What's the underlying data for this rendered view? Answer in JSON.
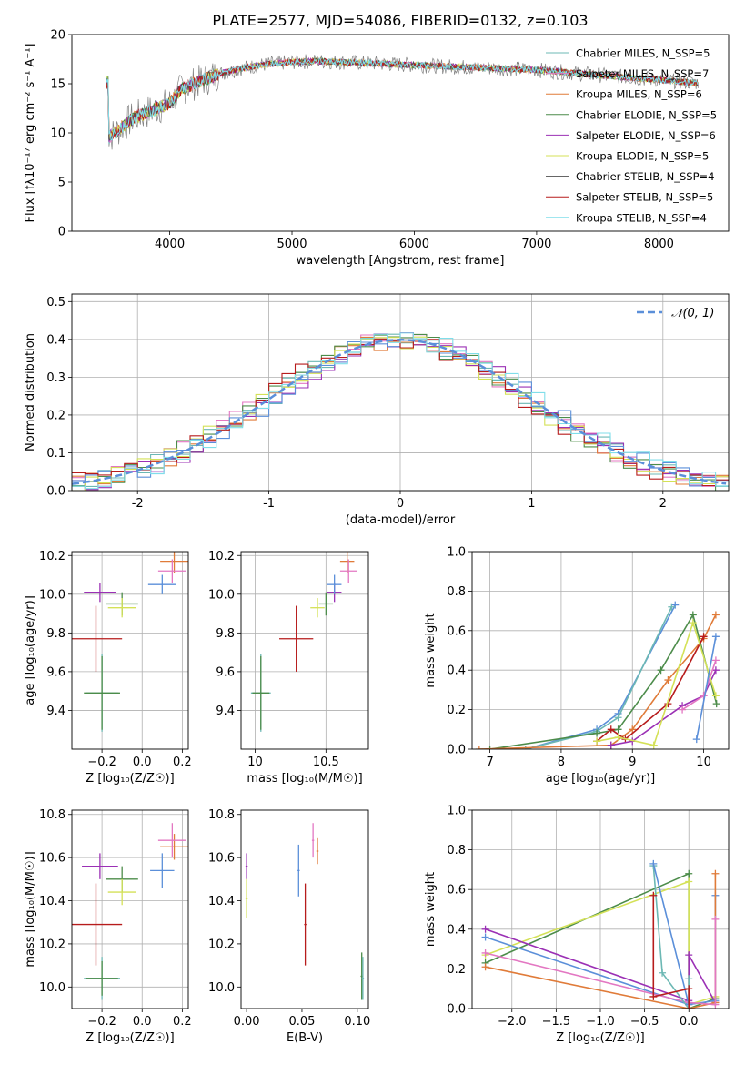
{
  "figure": {
    "title": "PLATE=2577, MJD=54086, FIBERID=0132, z=0.103"
  },
  "chart_data": [
    {
      "id": "spectrum",
      "type": "line",
      "title": "PLATE=2577, MJD=54086, FIBERID=0132, z=0.103",
      "xlabel": "wavelength [Angstrom, rest frame]",
      "ylabel": "Flux [fλ10⁻¹⁷ erg cm⁻² s⁻¹ A⁻¹]",
      "xlim": [
        3200,
        8570
      ],
      "ylim": [
        0,
        20
      ],
      "xticks": [
        4000,
        5000,
        6000,
        7000,
        8000
      ],
      "yticks": [
        0,
        5,
        10,
        15,
        20
      ],
      "grid": false,
      "legend_position": "top-right",
      "data_trace": {
        "name": "",
        "color": "#808080",
        "x": [
          3500,
          3600,
          3700,
          3800,
          3900,
          4000,
          4100,
          4200,
          4300,
          4400,
          4500,
          4600,
          4700,
          4800,
          4900,
          5000,
          5200,
          5400,
          5600,
          5800,
          6000,
          6200,
          6400,
          6600,
          6800,
          7000,
          7200,
          7400,
          7600,
          7800,
          8000,
          8200,
          8300
        ],
        "y": [
          9.5,
          10.5,
          11.5,
          12.0,
          12.5,
          13.0,
          14.5,
          15.0,
          15.5,
          16.0,
          16.3,
          16.6,
          16.8,
          17.0,
          17.1,
          17.2,
          17.3,
          17.2,
          17.1,
          17.0,
          16.9,
          16.8,
          16.7,
          16.6,
          16.5,
          16.4,
          16.2,
          16.0,
          15.8,
          15.6,
          15.4,
          15.2,
          15.1
        ]
      },
      "series": [
        {
          "name": "Chabrier MILES, N_SSP=5",
          "color": "#6cb8b4"
        },
        {
          "name": "Salpeter MILES, N_SSP=7",
          "color": "#e377c2"
        },
        {
          "name": "Kroupa MILES, N_SSP=6",
          "color": "#e07b39"
        },
        {
          "name": "Chabrier ELODIE, N_SSP=5",
          "color": "#4c8c4a"
        },
        {
          "name": "Salpeter ELODIE, N_SSP=6",
          "color": "#9b30b5"
        },
        {
          "name": "Kroupa ELODIE, N_SSP=5",
          "color": "#d4e157"
        },
        {
          "name": "Chabrier STELIB, N_SSP=4",
          "color": "#505050"
        },
        {
          "name": "Salpeter STELIB, N_SSP=5",
          "color": "#b71c1c"
        },
        {
          "name": "Kroupa STELIB, N_SSP=4",
          "color": "#80deea"
        }
      ]
    },
    {
      "id": "residuals",
      "type": "histogram",
      "xlabel": "(data-model)/error",
      "ylabel": "Normed distribution",
      "xlim": [
        -2.5,
        2.5
      ],
      "ylim": [
        0,
        0.52
      ],
      "xticks": [
        -2,
        -1,
        0,
        1,
        2
      ],
      "yticks": [
        0.0,
        0.1,
        0.2,
        0.3,
        0.4,
        0.5
      ],
      "grid": true,
      "legend_position": "top-right",
      "legend": [
        "𝒩(0, 1)"
      ],
      "gaussian": {
        "mean": 0,
        "sigma": 1,
        "color": "#5b8fd9"
      },
      "bin_width": 0.1,
      "histograms": [
        {
          "color": "#6cb8b4",
          "offset": 0.0
        },
        {
          "color": "#e377c2",
          "offset": 0.02
        },
        {
          "color": "#e07b39",
          "offset": -0.02
        },
        {
          "color": "#4c8c4a",
          "offset": 0.03
        },
        {
          "color": "#9b30b5",
          "offset": -0.03
        },
        {
          "color": "#d4e157",
          "offset": 0.04
        },
        {
          "color": "#5b8fd9",
          "offset": -0.04
        },
        {
          "color": "#b71c1c",
          "offset": 0.05
        },
        {
          "color": "#80deea",
          "offset": -0.05
        }
      ]
    },
    {
      "id": "age_vs_Z",
      "type": "errorbar",
      "xlabel": "Z [log₁₀(Z/Z☉)]",
      "ylabel": "age  [log₁₀(age/yr)]",
      "xlim": [
        -0.35,
        0.23
      ],
      "ylim": [
        9.2,
        10.22
      ],
      "xticks": [
        -0.2,
        0.0,
        0.2
      ],
      "xtick_labels": [
        "−0.2",
        "0.0",
        "0.2"
      ],
      "yticks": [
        9.4,
        9.6,
        9.8,
        10.0,
        10.2
      ],
      "grid": true,
      "points": [
        {
          "x": -0.2,
          "y": 9.49,
          "xerr": 0.08,
          "yerr": 0.2,
          "color": "#6cb8b4"
        },
        {
          "x": -0.2,
          "y": 9.49,
          "xerr": 0.09,
          "yerr": 0.19,
          "color": "#4c8c4a"
        },
        {
          "x": -0.23,
          "y": 9.77,
          "xerr": 0.13,
          "yerr": 0.17,
          "color": "#b71c1c"
        },
        {
          "x": -0.21,
          "y": 10.01,
          "xerr": 0.08,
          "yerr": 0.05,
          "color": "#9b30b5"
        },
        {
          "x": -0.1,
          "y": 9.95,
          "xerr": 0.08,
          "yerr": 0.06,
          "color": "#4c8c4a"
        },
        {
          "x": -0.1,
          "y": 9.93,
          "xerr": 0.07,
          "yerr": 0.05,
          "color": "#d4e157"
        },
        {
          "x": 0.1,
          "y": 10.05,
          "xerr": 0.07,
          "yerr": 0.05,
          "color": "#5b8fd9"
        },
        {
          "x": 0.16,
          "y": 10.17,
          "xerr": 0.07,
          "yerr": 0.06,
          "color": "#e07b39"
        },
        {
          "x": 0.15,
          "y": 10.12,
          "xerr": 0.07,
          "yerr": 0.06,
          "color": "#e377c2"
        }
      ]
    },
    {
      "id": "age_vs_mass",
      "type": "errorbar",
      "xlabel": "mass [log₁₀(M/M☉)]",
      "ylabel": "",
      "xlim": [
        9.9,
        10.8
      ],
      "ylim": [
        9.2,
        10.22
      ],
      "xticks": [
        10.0,
        10.5
      ],
      "yticks": [
        9.4,
        9.6,
        9.8,
        10.0,
        10.2
      ],
      "grid": true,
      "points": [
        {
          "x": 10.04,
          "y": 9.49,
          "xerr": 0.07,
          "yerr": 0.2,
          "color": "#6cb8b4"
        },
        {
          "x": 10.04,
          "y": 9.49,
          "xerr": 0.06,
          "yerr": 0.19,
          "color": "#4c8c4a"
        },
        {
          "x": 10.29,
          "y": 9.77,
          "xerr": 0.12,
          "yerr": 0.17,
          "color": "#b71c1c"
        },
        {
          "x": 10.5,
          "y": 9.95,
          "xerr": 0.05,
          "yerr": 0.06,
          "color": "#4c8c4a"
        },
        {
          "x": 10.44,
          "y": 9.93,
          "xerr": 0.05,
          "yerr": 0.05,
          "color": "#d4e157"
        },
        {
          "x": 10.56,
          "y": 10.01,
          "xerr": 0.05,
          "yerr": 0.05,
          "color": "#9b30b5"
        },
        {
          "x": 10.56,
          "y": 10.05,
          "xerr": 0.05,
          "yerr": 0.05,
          "color": "#5b8fd9"
        },
        {
          "x": 10.65,
          "y": 10.17,
          "xerr": 0.05,
          "yerr": 0.06,
          "color": "#e07b39"
        },
        {
          "x": 10.66,
          "y": 10.12,
          "xerr": 0.06,
          "yerr": 0.06,
          "color": "#e377c2"
        }
      ]
    },
    {
      "id": "weight_vs_age",
      "type": "line",
      "xlabel": "age  [log₁₀(age/yr)]",
      "ylabel": "mass weight",
      "xlim": [
        6.75,
        10.35
      ],
      "ylim": [
        0,
        1
      ],
      "xticks": [
        7,
        8,
        9,
        10
      ],
      "yticks": [
        0.0,
        0.2,
        0.4,
        0.6,
        0.8,
        1.0
      ],
      "grid": true,
      "series": [
        {
          "color": "#5b8fd9",
          "x": [
            7.5,
            8.5,
            8.8,
            9.6
          ],
          "y": [
            0.0,
            0.1,
            0.18,
            0.73
          ]
        },
        {
          "color": "#6cb8b4",
          "x": [
            7.5,
            8.5,
            8.8,
            9.55
          ],
          "y": [
            0.0,
            0.09,
            0.16,
            0.72
          ]
        },
        {
          "color": "#4c8c4a",
          "x": [
            7.0,
            8.5,
            8.8,
            9.4,
            9.85,
            10.18
          ],
          "y": [
            0.0,
            0.08,
            0.1,
            0.4,
            0.68,
            0.23
          ]
        },
        {
          "color": "#e07b39",
          "x": [
            6.85,
            8.7,
            9.0,
            9.5,
            10.0,
            10.17
          ],
          "y": [
            0.0,
            0.02,
            0.1,
            0.35,
            0.56,
            0.68
          ]
        },
        {
          "color": "#b71c1c",
          "x": [
            8.5,
            8.7,
            8.9,
            9.5,
            10.0
          ],
          "y": [
            0.04,
            0.1,
            0.05,
            0.23,
            0.57
          ]
        },
        {
          "color": "#9b30b5",
          "x": [
            8.7,
            9.0,
            9.7,
            10.0,
            10.17
          ],
          "y": [
            0.02,
            0.04,
            0.22,
            0.27,
            0.4
          ]
        },
        {
          "color": "#e377c2",
          "x": [
            9.7,
            10.0,
            10.17
          ],
          "y": [
            0.2,
            0.27,
            0.45
          ]
        },
        {
          "color": "#d4e157",
          "x": [
            8.5,
            8.8,
            9.3,
            9.85,
            10.17
          ],
          "y": [
            0.04,
            0.06,
            0.02,
            0.64,
            0.27
          ]
        },
        {
          "color": "#5b8fd9",
          "x": [
            9.9,
            10.17
          ],
          "y": [
            0.05,
            0.57
          ]
        }
      ]
    },
    {
      "id": "mass_vs_Z",
      "type": "errorbar",
      "xlabel": "Z [log₁₀(Z/Z☉)]",
      "ylabel": "mass [log₁₀(M/M☉)]",
      "xlim": [
        -0.35,
        0.23
      ],
      "ylim": [
        9.9,
        10.82
      ],
      "xticks": [
        -0.2,
        0.0,
        0.2
      ],
      "xtick_labels": [
        "−0.2",
        "0.0",
        "0.2"
      ],
      "yticks": [
        10.0,
        10.2,
        10.4,
        10.6,
        10.8
      ],
      "grid": true,
      "points": [
        {
          "x": -0.2,
          "y": 10.04,
          "xerr": 0.09,
          "yerr": 0.1,
          "color": "#6cb8b4"
        },
        {
          "x": -0.2,
          "y": 10.04,
          "xerr": 0.08,
          "yerr": 0.08,
          "color": "#4c8c4a"
        },
        {
          "x": -0.23,
          "y": 10.29,
          "xerr": 0.13,
          "yerr": 0.19,
          "color": "#b71c1c"
        },
        {
          "x": -0.21,
          "y": 10.56,
          "xerr": 0.09,
          "yerr": 0.06,
          "color": "#9b30b5"
        },
        {
          "x": -0.1,
          "y": 10.5,
          "xerr": 0.08,
          "yerr": 0.06,
          "color": "#4c8c4a"
        },
        {
          "x": -0.1,
          "y": 10.44,
          "xerr": 0.07,
          "yerr": 0.06,
          "color": "#d4e157"
        },
        {
          "x": 0.1,
          "y": 10.54,
          "xerr": 0.06,
          "yerr": 0.08,
          "color": "#5b8fd9"
        },
        {
          "x": 0.16,
          "y": 10.65,
          "xerr": 0.07,
          "yerr": 0.06,
          "color": "#e07b39"
        },
        {
          "x": 0.15,
          "y": 10.68,
          "xerr": 0.07,
          "yerr": 0.08,
          "color": "#e377c2"
        }
      ]
    },
    {
      "id": "mass_vs_EBV",
      "type": "errorbar",
      "xlabel": "E(B-V)",
      "ylabel": "",
      "xlim": [
        -0.005,
        0.11
      ],
      "ylim": [
        9.9,
        10.82
      ],
      "xticks": [
        0.0,
        0.05,
        0.1
      ],
      "xtick_labels": [
        "0.00",
        "0.05",
        "0.10"
      ],
      "yticks": [
        10.0,
        10.2,
        10.4,
        10.6,
        10.8
      ],
      "grid": false,
      "points": [
        {
          "x": 0.0,
          "y": 10.56,
          "xerr": 0.001,
          "yerr": 0.06,
          "color": "#9b30b5"
        },
        {
          "x": 0.0,
          "y": 10.41,
          "xerr": 0.001,
          "yerr": 0.09,
          "color": "#d4e157"
        },
        {
          "x": 0.047,
          "y": 10.54,
          "xerr": 0.001,
          "yerr": 0.12,
          "color": "#5b8fd9"
        },
        {
          "x": 0.053,
          "y": 10.29,
          "xerr": 0.001,
          "yerr": 0.19,
          "color": "#b71c1c"
        },
        {
          "x": 0.06,
          "y": 10.68,
          "xerr": 0.001,
          "yerr": 0.08,
          "color": "#e377c2"
        },
        {
          "x": 0.064,
          "y": 10.63,
          "xerr": 0.001,
          "yerr": 0.06,
          "color": "#e07b39"
        },
        {
          "x": 0.104,
          "y": 10.05,
          "xerr": 0.001,
          "yerr": 0.11,
          "color": "#4c8c4a"
        },
        {
          "x": 0.105,
          "y": 10.04,
          "xerr": 0.001,
          "yerr": 0.1,
          "color": "#6cb8b4"
        }
      ]
    },
    {
      "id": "weight_vs_Z",
      "type": "line",
      "xlabel": "Z [log₁₀(Z/Z☉)]",
      "ylabel": "mass weight",
      "xlim": [
        -2.45,
        0.45
      ],
      "ylim": [
        0,
        1
      ],
      "xticks": [
        -2.0,
        -1.5,
        -1.0,
        -0.5,
        0.0
      ],
      "xtick_labels": [
        "−2.0",
        "−1.5",
        "−1.0",
        "−0.5",
        "0.0"
      ],
      "yticks": [
        0.0,
        0.2,
        0.4,
        0.6,
        0.8,
        1.0
      ],
      "grid": true,
      "series": [
        {
          "color": "#4c8c4a",
          "x": [
            -2.3,
            0.0,
            0.0,
            0.3
          ],
          "y": [
            0.23,
            0.68,
            0.0,
            0.05
          ]
        },
        {
          "color": "#d4e157",
          "x": [
            -2.3,
            0.0,
            0.0,
            0.3
          ],
          "y": [
            0.27,
            0.64,
            0.02,
            0.06
          ]
        },
        {
          "color": "#9b30b5",
          "x": [
            -2.3,
            0.0,
            0.0,
            0.3
          ],
          "y": [
            0.4,
            0.04,
            0.27,
            0.03
          ]
        },
        {
          "color": "#5b8fd9",
          "x": [
            -2.3,
            0.0,
            0.3,
            0.3
          ],
          "y": [
            0.36,
            0.02,
            0.04,
            0.57
          ]
        },
        {
          "color": "#e07b39",
          "x": [
            -2.3,
            0.0,
            0.3,
            0.3
          ],
          "y": [
            0.21,
            0.0,
            0.03,
            0.68
          ]
        },
        {
          "color": "#e377c2",
          "x": [
            -2.3,
            0.0,
            0.3,
            0.3
          ],
          "y": [
            0.28,
            0.03,
            0.02,
            0.45
          ]
        },
        {
          "color": "#6cb8b4",
          "x": [
            -0.4,
            -0.3,
            0.0,
            0.0
          ],
          "y": [
            0.72,
            0.18,
            0.0,
            0.15
          ]
        },
        {
          "color": "#5b8fd9",
          "x": [
            -0.4,
            0.0
          ],
          "y": [
            0.73,
            0.02
          ]
        },
        {
          "color": "#b71c1c",
          "x": [
            -0.4,
            -0.4,
            0.0,
            0.0
          ],
          "y": [
            0.57,
            0.06,
            0.1,
            0.0
          ]
        }
      ]
    }
  ]
}
